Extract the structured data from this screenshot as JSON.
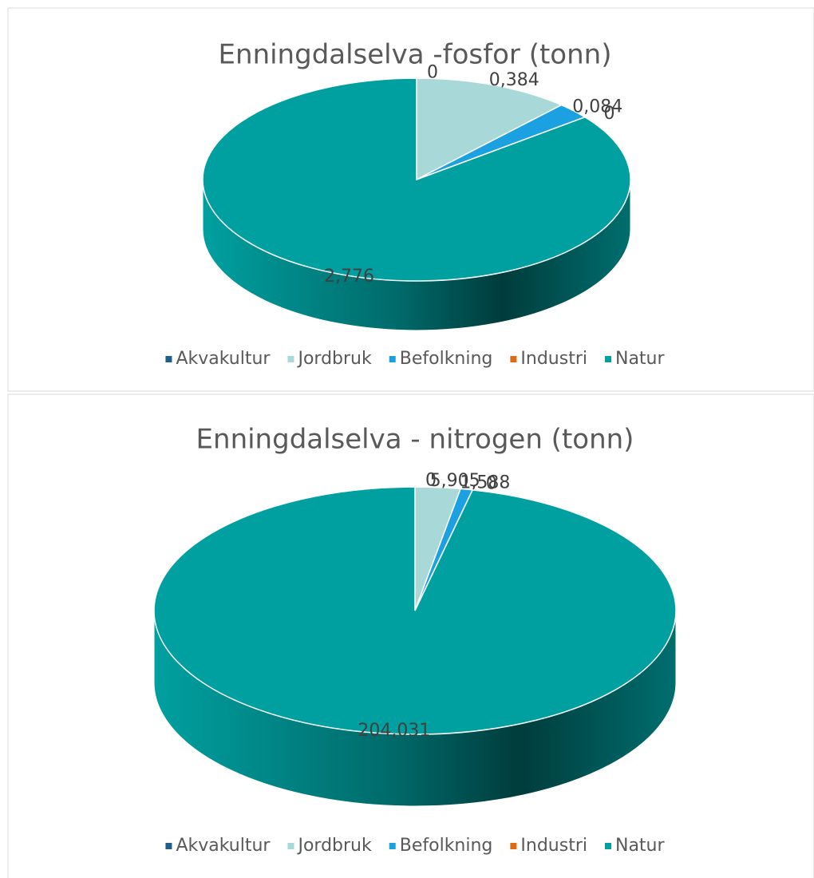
{
  "chart_data": [
    {
      "type": "pie",
      "title": "Enningdalselva -fosfor (tonn)",
      "categories": [
        "Akvakultur",
        "Jordbruk",
        "Befolkning",
        "Industri",
        "Natur"
      ],
      "values": [
        0,
        0.384,
        0.084,
        0,
        2.776
      ],
      "value_labels": [
        "0",
        "0,384",
        "0,084",
        "0",
        "2,776"
      ],
      "colors": [
        "#1f5f8b",
        "#a8d8d8",
        "#1ba1e2",
        "#e06a10",
        "#00a0a0"
      ],
      "legend": "bottom"
    },
    {
      "type": "pie",
      "title": "Enningdalselva - nitrogen (tonn)",
      "categories": [
        "Akvakultur",
        "Jordbruk",
        "Befolkning",
        "Industri",
        "Natur"
      ],
      "values": [
        0,
        5.905,
        1.588,
        0,
        204.031
      ],
      "value_labels": [
        "0",
        "5,905",
        "1,588",
        "0",
        "204,031"
      ],
      "colors": [
        "#1f5f8b",
        "#a8d8d8",
        "#1ba1e2",
        "#e06a10",
        "#00a0a0"
      ],
      "legend": "bottom"
    }
  ]
}
